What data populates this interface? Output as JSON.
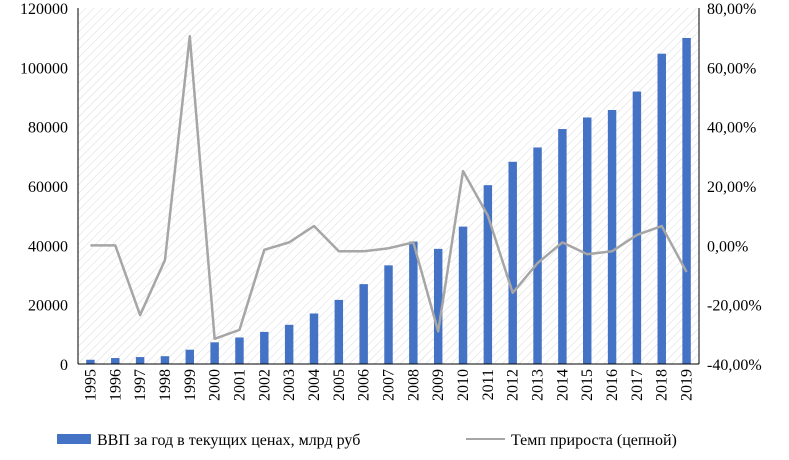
{
  "chart_data": {
    "type": "bar",
    "title": "",
    "xlabel": "",
    "ylabel": "",
    "categories": [
      "1995",
      "1996",
      "1997",
      "1998",
      "1999",
      "2000",
      "2001",
      "2002",
      "2003",
      "2004",
      "2005",
      "2006",
      "2007",
      "2008",
      "2009",
      "2010",
      "2011",
      "2012",
      "2013",
      "2014",
      "2015",
      "2016",
      "2017",
      "2018",
      "2019"
    ],
    "series": [
      {
        "name": "ВВП за год в текущих ценах, млрд руб",
        "type": "bar",
        "axis": "left",
        "color": "#4472C4",
        "values": [
          1430,
          2010,
          2340,
          2630,
          4820,
          7310,
          8940,
          10820,
          13210,
          17030,
          21610,
          26920,
          33250,
          41280,
          38810,
          46310,
          60280,
          68160,
          72990,
          79200,
          83100,
          85620,
          91840,
          104600,
          109900
        ]
      },
      {
        "name": "Темп прироста (цепной)",
        "type": "line",
        "axis": "right",
        "color": "#A6A6A6",
        "values": [
          0,
          0,
          -23.5,
          -5,
          70.5,
          -31.5,
          -28.5,
          -1.5,
          1,
          6.5,
          -2,
          -2,
          -1,
          1,
          -29,
          25,
          10,
          -16,
          -6,
          1,
          -3,
          -2,
          3.5,
          6.5,
          -9
        ]
      }
    ],
    "y_left": {
      "min": 0,
      "max": 120000,
      "ticks": [
        "0",
        "20000",
        "40000",
        "60000",
        "80000",
        "100000",
        "120000"
      ]
    },
    "y_right": {
      "min": -40,
      "max": 80,
      "ticks": [
        "-40,00%",
        "-20,00%",
        "0,00%",
        "20,00%",
        "40,00%",
        "60,00%",
        "80,00%"
      ]
    },
    "grid": false,
    "plot_background": "diagonal-hatch",
    "legend": {
      "position": "bottom",
      "items": [
        "ВВП за год в текущих ценах, млрд руб",
        "Темп прироста (цепной)"
      ]
    }
  }
}
